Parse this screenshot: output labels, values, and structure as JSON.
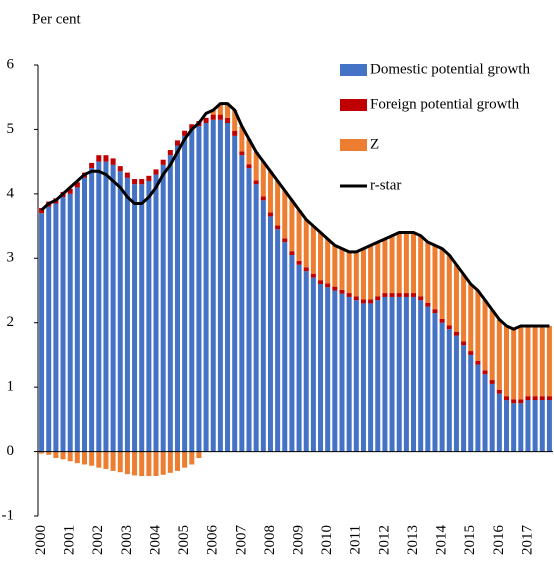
{
  "chart_data": {
    "type": "bar",
    "stacked": true,
    "y_label": "Per cent",
    "categories": [
      "2000",
      null,
      null,
      null,
      "2001",
      null,
      null,
      null,
      "2002",
      null,
      null,
      null,
      "2003",
      null,
      null,
      null,
      "2004",
      null,
      null,
      null,
      "2005",
      null,
      null,
      null,
      "2006",
      null,
      null,
      null,
      "2007",
      null,
      null,
      null,
      "2008",
      null,
      null,
      null,
      "2009",
      null,
      null,
      null,
      "2010",
      null,
      null,
      null,
      "2011",
      null,
      null,
      null,
      "2012",
      null,
      null,
      null,
      "2013",
      null,
      null,
      null,
      "2014",
      null,
      null,
      null,
      "2015",
      null,
      null,
      null,
      "2016",
      null,
      null,
      null,
      "2017",
      null,
      null,
      null
    ],
    "series": [
      {
        "name": "Domestic potential growth",
        "color": "#4472c4",
        "values": [
          3.7,
          3.8,
          3.85,
          3.95,
          4.0,
          4.1,
          4.25,
          4.4,
          4.5,
          4.5,
          4.45,
          4.35,
          4.25,
          4.15,
          4.15,
          4.2,
          4.3,
          4.45,
          4.6,
          4.75,
          4.9,
          5.0,
          5.05,
          5.1,
          5.15,
          5.15,
          5.1,
          4.9,
          4.6,
          4.4,
          4.15,
          3.9,
          3.65,
          3.45,
          3.25,
          3.05,
          2.9,
          2.8,
          2.7,
          2.6,
          2.55,
          2.5,
          2.45,
          2.4,
          2.35,
          2.3,
          2.3,
          2.35,
          2.4,
          2.4,
          2.4,
          2.4,
          2.4,
          2.35,
          2.25,
          2.15,
          2.0,
          1.9,
          1.8,
          1.65,
          1.5,
          1.35,
          1.2,
          1.05,
          0.9,
          0.8,
          0.75,
          0.75,
          0.8,
          0.8,
          0.8,
          0.8
        ]
      },
      {
        "name": "Foreign potential growth",
        "color": "#c00000",
        "values": [
          0.08,
          0.08,
          0.08,
          0.08,
          0.08,
          0.08,
          0.08,
          0.08,
          0.1,
          0.1,
          0.1,
          0.08,
          0.08,
          0.08,
          0.08,
          0.08,
          0.08,
          0.08,
          0.08,
          0.08,
          0.08,
          0.08,
          0.08,
          0.08,
          0.08,
          0.08,
          0.08,
          0.08,
          0.06,
          0.06,
          0.06,
          0.06,
          0.06,
          0.06,
          0.06,
          0.06,
          0.06,
          0.06,
          0.06,
          0.06,
          0.06,
          0.06,
          0.06,
          0.06,
          0.06,
          0.06,
          0.06,
          0.06,
          0.06,
          0.06,
          0.06,
          0.06,
          0.06,
          0.06,
          0.06,
          0.06,
          0.06,
          0.06,
          0.06,
          0.06,
          0.06,
          0.06,
          0.06,
          0.06,
          0.06,
          0.06,
          0.06,
          0.06,
          0.06,
          0.06,
          0.06,
          0.06
        ]
      },
      {
        "name": "Z",
        "color": "#ed7d31",
        "values": [
          -0.03,
          -0.05,
          -0.1,
          -0.12,
          -0.15,
          -0.18,
          -0.2,
          -0.22,
          -0.25,
          -0.27,
          -0.3,
          -0.32,
          -0.35,
          -0.37,
          -0.38,
          -0.38,
          -0.38,
          -0.36,
          -0.33,
          -0.3,
          -0.25,
          -0.2,
          -0.1,
          0,
          0.07,
          0.17,
          0.22,
          0.32,
          0.39,
          0.39,
          0.44,
          0.54,
          0.64,
          0.69,
          0.74,
          0.79,
          0.79,
          0.74,
          0.74,
          0.74,
          0.69,
          0.64,
          0.64,
          0.64,
          0.69,
          0.79,
          0.84,
          0.84,
          0.84,
          0.89,
          0.94,
          0.94,
          0.94,
          0.94,
          0.94,
          0.99,
          1.09,
          1.09,
          1.04,
          1.04,
          1.04,
          1.09,
          1.09,
          1.09,
          1.09,
          1.09,
          1.09,
          1.14,
          1.09,
          1.09,
          1.09,
          1.09
        ]
      },
      {
        "name": "r-star",
        "color": "#000000",
        "type": "line",
        "values": [
          3.75,
          3.85,
          3.9,
          4.0,
          4.1,
          4.2,
          4.3,
          4.35,
          4.35,
          4.3,
          4.2,
          4.1,
          3.95,
          3.85,
          3.85,
          3.95,
          4.1,
          4.3,
          4.45,
          4.65,
          4.85,
          5.0,
          5.1,
          5.25,
          5.3,
          5.4,
          5.4,
          5.3,
          5.05,
          4.85,
          4.65,
          4.5,
          4.35,
          4.2,
          4.05,
          3.9,
          3.75,
          3.6,
          3.5,
          3.4,
          3.3,
          3.2,
          3.15,
          3.1,
          3.1,
          3.15,
          3.2,
          3.25,
          3.3,
          3.35,
          3.4,
          3.4,
          3.4,
          3.35,
          3.25,
          3.2,
          3.15,
          3.05,
          2.9,
          2.75,
          2.6,
          2.5,
          2.35,
          2.2,
          2.05,
          1.95,
          1.9,
          1.95,
          1.95,
          1.95,
          1.95,
          1.95
        ]
      }
    ],
    "ylim": [
      -1,
      6
    ],
    "yticks": [
      -1,
      0,
      1,
      2,
      3,
      4,
      5,
      6
    ],
    "legend": "upper right"
  }
}
